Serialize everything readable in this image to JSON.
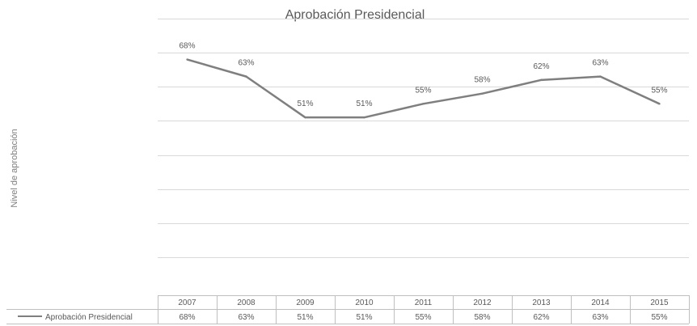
{
  "chart_data": {
    "type": "line",
    "title": "Aprobación Presidencial",
    "ylabel": "Nivel de aprobación",
    "xlabel": "",
    "categories": [
      "2007",
      "2008",
      "2009",
      "2010",
      "2011",
      "2012",
      "2013",
      "2014",
      "2015"
    ],
    "series": [
      {
        "name": "Aprobación Presidencial",
        "values": [
          68,
          63,
          51,
          51,
          55,
          58,
          62,
          63,
          55
        ],
        "labels": [
          "68%",
          "63%",
          "51%",
          "51%",
          "55%",
          "58%",
          "62%",
          "63%",
          "55%"
        ],
        "color": "#7f7f7f"
      }
    ],
    "ylim": [
      0,
      80
    ],
    "grid": true,
    "data_table": true,
    "legend": "data-table"
  }
}
